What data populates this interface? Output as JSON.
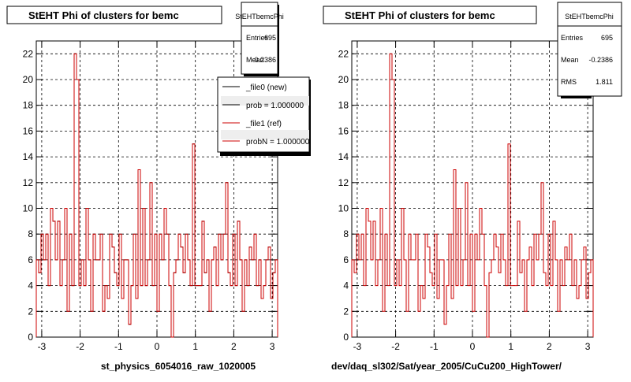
{
  "panels": [
    {
      "title": "StEHT Phi of clusters for bemc",
      "xlabel": "st_physics_6054016_raw_1020005",
      "stats": {
        "name": "StEHTbemcPhi",
        "rows": [
          {
            "label": "Entries",
            "value": "695"
          },
          {
            "label": "Mean",
            "value": "-0.2386"
          }
        ]
      },
      "legend": [
        {
          "label": "_file0 (new)",
          "color": "#000000"
        },
        {
          "label": "prob = 1.000000",
          "color": "#000000"
        },
        {
          "label": "_file1 (ref)",
          "color": "#cc0000"
        },
        {
          "label": "probN = 1.000000",
          "color": "#cc0000"
        }
      ]
    },
    {
      "title": "StEHT Phi of clusters for bemc",
      "xlabel": "dev/daq_sl302/Sat/year_2005/CuCu200_HighTower/",
      "stats": {
        "name": "StEHTbemcPhi",
        "rows": [
          {
            "label": "Entries",
            "value": "695"
          },
          {
            "label": "Mean",
            "value": "-0.2386"
          },
          {
            "label": "RMS",
            "value": "1.811"
          }
        ]
      },
      "legend": []
    }
  ],
  "chart_data": [
    {
      "type": "line",
      "style": "histogram-step",
      "title": "StEHT Phi of clusters for bemc",
      "xlabel": "st_physics_6054016_raw_1020005",
      "xlim": [
        -3.1416,
        3.1416
      ],
      "ylim": [
        0,
        23
      ],
      "xticks": [
        -3,
        -2,
        -1,
        0,
        1,
        2,
        3
      ],
      "yticks": [
        0,
        2,
        4,
        6,
        8,
        10,
        12,
        14,
        16,
        18,
        20,
        22
      ],
      "grid": true,
      "series": [
        {
          "name": "_file0 (new)",
          "color": "#000000",
          "values": [
            6,
            5,
            8,
            6,
            8,
            4,
            10,
            9,
            6,
            9,
            4,
            6,
            10,
            2,
            8,
            4,
            22,
            20,
            4,
            6,
            4,
            10,
            6,
            2,
            8,
            6,
            6,
            8,
            2,
            4,
            3,
            8,
            7,
            5,
            4,
            8,
            3,
            6,
            6,
            1,
            4,
            8,
            3,
            13,
            4,
            10,
            4,
            6,
            12,
            4,
            8,
            2,
            8,
            6,
            10,
            8,
            4,
            0,
            5,
            6,
            8,
            7,
            5,
            8,
            6,
            4,
            15,
            4,
            4,
            4,
            9,
            5,
            6,
            2,
            6,
            7,
            4,
            8,
            6,
            8,
            12,
            5,
            4,
            8,
            4,
            9,
            6,
            2,
            6,
            4,
            7,
            6,
            8,
            4,
            6,
            3,
            4,
            6,
            7,
            3,
            5,
            6
          ]
        },
        {
          "name": "_file1 (ref)",
          "color": "#cc0000",
          "values": [
            6,
            5,
            8,
            6,
            8,
            4,
            10,
            9,
            6,
            9,
            4,
            6,
            10,
            2,
            8,
            4,
            22,
            20,
            4,
            6,
            4,
            10,
            6,
            2,
            8,
            6,
            6,
            8,
            2,
            4,
            3,
            8,
            7,
            5,
            4,
            8,
            3,
            6,
            6,
            1,
            4,
            8,
            3,
            13,
            4,
            10,
            4,
            6,
            12,
            4,
            8,
            2,
            8,
            6,
            10,
            8,
            4,
            0,
            5,
            6,
            8,
            7,
            5,
            8,
            6,
            4,
            15,
            4,
            4,
            4,
            9,
            5,
            6,
            2,
            6,
            7,
            4,
            8,
            6,
            8,
            12,
            5,
            4,
            8,
            4,
            9,
            6,
            2,
            6,
            4,
            7,
            6,
            8,
            4,
            6,
            3,
            4,
            6,
            7,
            3,
            5,
            6
          ]
        }
      ]
    },
    {
      "type": "line",
      "style": "histogram-step",
      "title": "StEHT Phi of clusters for bemc",
      "xlabel": "dev/daq_sl302/Sat/year_2005/CuCu200_HighTower/",
      "xlim": [
        -3.1416,
        3.1416
      ],
      "ylim": [
        0,
        23
      ],
      "xticks": [
        -3,
        -2,
        -1,
        0,
        1,
        2,
        3
      ],
      "yticks": [
        0,
        2,
        4,
        6,
        8,
        10,
        12,
        14,
        16,
        18,
        20,
        22
      ],
      "grid": true,
      "series": [
        {
          "name": "",
          "color": "#cc0000",
          "values": [
            6,
            5,
            8,
            6,
            8,
            4,
            10,
            9,
            6,
            9,
            4,
            6,
            10,
            2,
            8,
            4,
            22,
            20,
            4,
            6,
            4,
            10,
            6,
            2,
            8,
            6,
            6,
            8,
            2,
            4,
            3,
            8,
            7,
            5,
            4,
            8,
            3,
            6,
            6,
            1,
            4,
            8,
            3,
            13,
            4,
            10,
            4,
            6,
            12,
            4,
            8,
            2,
            8,
            6,
            10,
            8,
            4,
            0,
            5,
            6,
            8,
            7,
            5,
            8,
            6,
            4,
            15,
            4,
            4,
            4,
            9,
            5,
            6,
            2,
            6,
            7,
            4,
            8,
            6,
            8,
            12,
            5,
            4,
            8,
            4,
            9,
            6,
            2,
            6,
            4,
            7,
            6,
            8,
            4,
            6,
            3,
            4,
            6,
            7,
            3,
            5,
            6
          ]
        }
      ]
    }
  ]
}
